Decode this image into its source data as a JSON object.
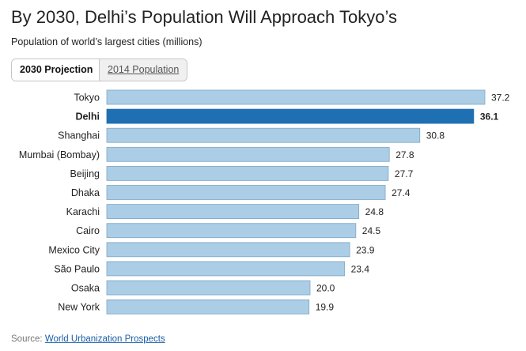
{
  "header": {
    "title": "By 2030, Delhi’s Population Will Approach Tokyo’s",
    "subtitle": "Population of world’s largest cities (millions)"
  },
  "toggle": {
    "tabs": [
      {
        "label": "2030 Projection",
        "active": true
      },
      {
        "label": "2014 Population",
        "active": false
      }
    ]
  },
  "colors": {
    "bar": "#abcde6",
    "bar_highlight": "#1f70b2",
    "bar_stroke": "#7fa7c6"
  },
  "chart_data": {
    "type": "bar",
    "orientation": "horizontal",
    "title": "By 2030, Delhi’s Population Will Approach Tokyo’s",
    "subtitle": "Population of world’s largest cities (millions)",
    "categories": [
      "Tokyo",
      "Delhi",
      "Shanghai",
      "Mumbai (Bombay)",
      "Beijing",
      "Dhaka",
      "Karachi",
      "Cairo",
      "Mexico City",
      "São Paulo",
      "Osaka",
      "New York"
    ],
    "values": [
      37.2,
      36.1,
      30.8,
      27.8,
      27.7,
      27.4,
      24.8,
      24.5,
      23.9,
      23.4,
      20.0,
      19.9
    ],
    "value_labels": [
      "37.2",
      "36.1",
      "30.8",
      "27.8",
      "27.7",
      "27.4",
      "24.8",
      "24.5",
      "23.9",
      "23.4",
      "20.0",
      "19.9"
    ],
    "highlight": "Delhi",
    "xlim": [
      0,
      37.2
    ],
    "grid": false,
    "legend": "none"
  },
  "footer": {
    "source_prefix": "Source: ",
    "source_link": "World Urbanization Prospects"
  }
}
